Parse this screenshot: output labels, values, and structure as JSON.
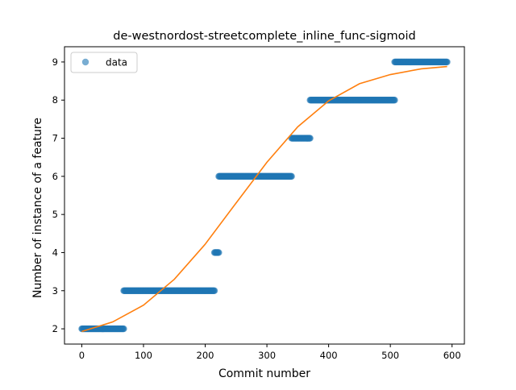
{
  "chart_data": {
    "type": "scatter",
    "title": "de-westnordost-streetcomplete_inline_func-sigmoid",
    "xlabel": "Commit number",
    "ylabel": "Number of instance of a feature",
    "xlim": [
      -28,
      620
    ],
    "ylim": [
      1.6,
      9.4
    ],
    "xticks": [
      0,
      100,
      200,
      300,
      400,
      500,
      600
    ],
    "yticks": [
      2,
      3,
      4,
      5,
      6,
      7,
      8,
      9
    ],
    "grid": false,
    "legend": {
      "position": "top-left",
      "entries": [
        "data"
      ]
    },
    "colors": {
      "data": "#1f77b4",
      "fit": "#ff7f0e"
    },
    "series": [
      {
        "name": "data",
        "kind": "points",
        "segments": [
          {
            "y": 2,
            "x_start": 0,
            "x_end": 68
          },
          {
            "y": 3,
            "x_start": 68,
            "x_end": 215
          },
          {
            "y": 4,
            "x_start": 215,
            "x_end": 222
          },
          {
            "y": 6,
            "x_start": 222,
            "x_end": 340
          },
          {
            "y": 7,
            "x_start": 340,
            "x_end": 370
          },
          {
            "y": 8,
            "x_start": 370,
            "x_end": 507
          },
          {
            "y": 9,
            "x_start": 507,
            "x_end": 592
          }
        ]
      },
      {
        "kind": "sigmoid-fit",
        "points": [
          [
            0,
            1.93
          ],
          [
            50,
            2.18
          ],
          [
            100,
            2.62
          ],
          [
            150,
            3.3
          ],
          [
            200,
            4.22
          ],
          [
            250,
            5.3
          ],
          [
            300,
            6.37
          ],
          [
            350,
            7.3
          ],
          [
            400,
            7.98
          ],
          [
            450,
            8.43
          ],
          [
            500,
            8.67
          ],
          [
            550,
            8.82
          ],
          [
            592,
            8.88
          ]
        ]
      }
    ]
  }
}
